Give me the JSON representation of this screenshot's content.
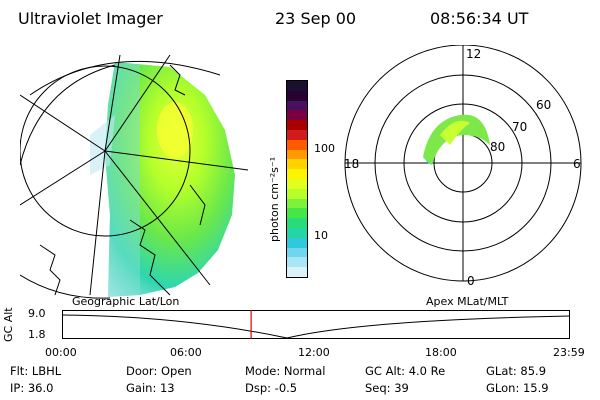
{
  "header": {
    "instrument": "Ultraviolet Imager",
    "date": "23 Sep 00",
    "time": "08:56:34 UT"
  },
  "colorbar": {
    "unit_label": "photon cm⁻²s⁻¹",
    "ticks": [
      "100",
      "10"
    ],
    "colors": [
      "#1a0f2e",
      "#2a0033",
      "#4a1060",
      "#7a0040",
      "#a80000",
      "#d21c1c",
      "#ff5a00",
      "#ff9a00",
      "#ffd200",
      "#fff400",
      "#e3ff20",
      "#b8ff28",
      "#7cf23a",
      "#46e646",
      "#28dc78",
      "#22d6a6",
      "#2ecadb",
      "#6fd6ee",
      "#a9e6f4",
      "#dcf2f8"
    ]
  },
  "left_map": {
    "label": "Geographic Lat/Lon"
  },
  "right_polar": {
    "label": "Apex MLat/MLT",
    "mlt_labels": [
      "12",
      "6",
      "0",
      "18"
    ],
    "lat_labels": [
      "60",
      "70",
      "80"
    ]
  },
  "timeline": {
    "axis_label": "GC Alt",
    "y_ticks": [
      "9.0",
      "1.8"
    ],
    "x_ticks": [
      "00:00",
      "06:00",
      "12:00",
      "18:00",
      "23:59"
    ],
    "marker_fraction": 0.373
  },
  "info": {
    "filter": "Flt: LBHL",
    "ip": "IP: 36.0",
    "door": "Door: Open",
    "gain": "Gain: 13",
    "mode": "Mode: Normal",
    "dsp": "Dsp:   -0.5",
    "gc_alt": "GC Alt: 4.0 Re",
    "seq": "Seq: 39",
    "glat": "GLat:  85.9",
    "glon": "GLon:  15.9"
  }
}
